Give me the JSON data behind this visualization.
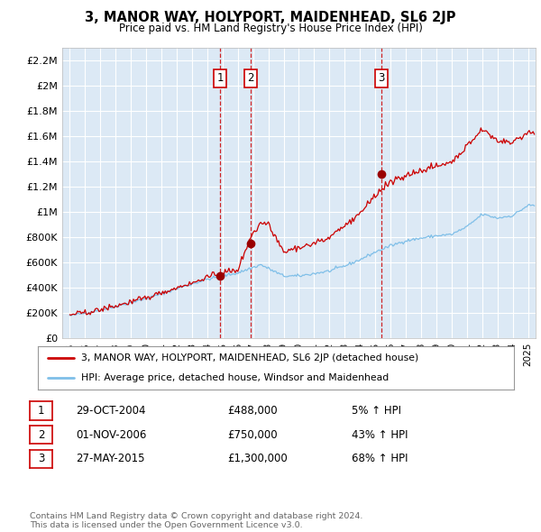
{
  "title": "3, MANOR WAY, HOLYPORT, MAIDENHEAD, SL6 2JP",
  "subtitle": "Price paid vs. HM Land Registry's House Price Index (HPI)",
  "background_color": "#ffffff",
  "plot_bg_color": "#dce9f5",
  "grid_color": "#ffffff",
  "hpi_color": "#7fbfe8",
  "price_color": "#cc0000",
  "sale_marker_color": "#990000",
  "vline_color": "#cc0000",
  "sales": [
    {
      "label": "1",
      "date_num": 2004.83,
      "price": 488000
    },
    {
      "label": "2",
      "date_num": 2006.84,
      "price": 750000
    },
    {
      "label": "3",
      "date_num": 2015.41,
      "price": 1300000
    }
  ],
  "legend_property": "3, MANOR WAY, HOLYPORT, MAIDENHEAD, SL6 2JP (detached house)",
  "legend_hpi": "HPI: Average price, detached house, Windsor and Maidenhead",
  "table_rows": [
    {
      "num": "1",
      "date": "29-OCT-2004",
      "price": "£488,000",
      "change": "5% ↑ HPI"
    },
    {
      "num": "2",
      "date": "01-NOV-2006",
      "price": "£750,000",
      "change": "43% ↑ HPI"
    },
    {
      "num": "3",
      "date": "27-MAY-2015",
      "price": "£1,300,000",
      "change": "68% ↑ HPI"
    }
  ],
  "footer": "Contains HM Land Registry data © Crown copyright and database right 2024.\nThis data is licensed under the Open Government Licence v3.0.",
  "ylim": [
    0,
    2300000
  ],
  "xlim_start": 1994.5,
  "xlim_end": 2025.5,
  "yticks": [
    0,
    200000,
    400000,
    600000,
    800000,
    1000000,
    1200000,
    1400000,
    1600000,
    1800000,
    2000000,
    2200000
  ],
  "ytick_labels": [
    "£0",
    "£200K",
    "£400K",
    "£600K",
    "£800K",
    "£1M",
    "£1.2M",
    "£1.4M",
    "£1.6M",
    "£1.8M",
    "£2M",
    "£2.2M"
  ]
}
